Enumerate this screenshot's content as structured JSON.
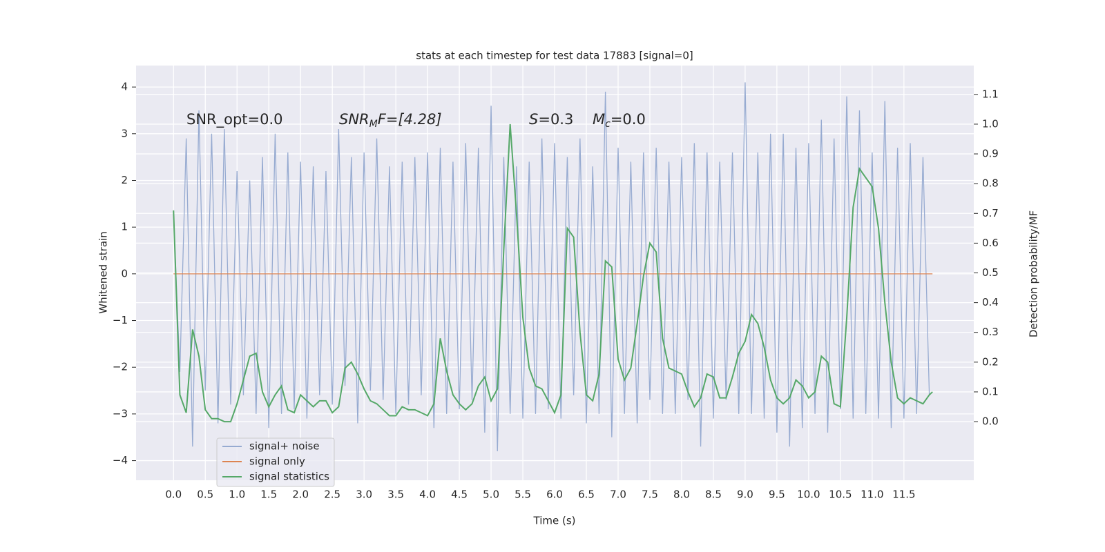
{
  "chart_data": {
    "type": "line",
    "title": "stats at each timestep for test data 17883 [signal=0]",
    "x_label": "Time (s)",
    "y_label": "Whitened strain",
    "y2_label": "Detection probability/MF",
    "annotations": [
      [
        "SNR_opt=0.0"
      ],
      [
        "SNR",
        "M",
        "F=[4.28]"
      ],
      [
        "S",
        "=0.3"
      ],
      [
        "M",
        "c",
        "=0.0"
      ]
    ],
    "xlim": [
      -0.59,
      12.6
    ],
    "ylim": [
      -4.42,
      4.46
    ],
    "y2lim": [
      -0.197,
      1.197
    ],
    "xticks": [
      {
        "value": 0,
        "label": "0.0"
      },
      {
        "value": 0.5,
        "label": "0.5"
      },
      {
        "value": 1,
        "label": "1.0"
      },
      {
        "value": 1.5,
        "label": "1.5"
      },
      {
        "value": 2,
        "label": "2.0"
      },
      {
        "value": 2.5,
        "label": "2.5"
      },
      {
        "value": 3,
        "label": "3.0"
      },
      {
        "value": 3.5,
        "label": "3.5"
      },
      {
        "value": 4,
        "label": "4.0"
      },
      {
        "value": 4.5,
        "label": "4.5"
      },
      {
        "value": 5,
        "label": "5.0"
      },
      {
        "value": 5.5,
        "label": "5.5"
      },
      {
        "value": 6,
        "label": "6.0"
      },
      {
        "value": 6.5,
        "label": "6.5"
      },
      {
        "value": 7,
        "label": "7.0"
      },
      {
        "value": 7.5,
        "label": "7.5"
      },
      {
        "value": 8,
        "label": "8.0"
      },
      {
        "value": 8.5,
        "label": "8.5"
      },
      {
        "value": 9,
        "label": "9.0"
      },
      {
        "value": 9.5,
        "label": "9.5"
      },
      {
        "value": 10,
        "label": "10.0"
      },
      {
        "value": 10.5,
        "label": "10.5"
      },
      {
        "value": 11,
        "label": "11.0"
      },
      {
        "value": 11.5,
        "label": "11.5"
      }
    ],
    "yticks": [
      {
        "value": -4,
        "label": "−4"
      },
      {
        "value": -3,
        "label": "−3"
      },
      {
        "value": -2,
        "label": "−2"
      },
      {
        "value": -1,
        "label": "−1"
      },
      0,
      1,
      2,
      3,
      4
    ],
    "y2ticks": [
      {
        "value": 0,
        "label": "0.0"
      },
      {
        "value": 0.1,
        "label": "0.1"
      },
      {
        "value": 0.2,
        "label": "0.2"
      },
      {
        "value": 0.3,
        "label": "0.3"
      },
      {
        "value": 0.4,
        "label": "0.4"
      },
      {
        "value": 0.5,
        "label": "0.5"
      },
      {
        "value": 0.6,
        "label": "0.6"
      },
      {
        "value": 0.7,
        "label": "0.7"
      },
      {
        "value": 0.8,
        "label": "0.8"
      },
      {
        "value": 0.9,
        "label": "0.9"
      },
      {
        "value": 1,
        "label": "1.0"
      },
      {
        "value": 1.1,
        "label": "1.1"
      }
    ],
    "grid": true,
    "legend": "lower left",
    "series": [
      {
        "name": "signal+ noise",
        "color": "#97abd1",
        "x": [
          0,
          0.1,
          0.2,
          0.3,
          0.4,
          0.5,
          0.6,
          0.7,
          0.8,
          0.9,
          1,
          1.1,
          1.2,
          1.3,
          1.4,
          1.5,
          1.6,
          1.7,
          1.8,
          1.9,
          2,
          2.1,
          2.2,
          2.3,
          2.4,
          2.5,
          2.6,
          2.7,
          2.8,
          2.9,
          3,
          3.1,
          3.2,
          3.3,
          3.4,
          3.5,
          3.6,
          3.7,
          3.8,
          3.9,
          4,
          4.1,
          4.2,
          4.3,
          4.4,
          4.5,
          4.6,
          4.7,
          4.8,
          4.9,
          5,
          5.1,
          5.2,
          5.3,
          5.4,
          5.5,
          5.6,
          5.7,
          5.8,
          5.9,
          6,
          6.1,
          6.2,
          6.3,
          6.4,
          6.5,
          6.6,
          6.7,
          6.8,
          6.9,
          7,
          7.1,
          7.2,
          7.3,
          7.4,
          7.5,
          7.6,
          7.7,
          7.8,
          7.9,
          8,
          8.1,
          8.2,
          8.3,
          8.4,
          8.5,
          8.6,
          8.7,
          8.8,
          8.9,
          9,
          9.1,
          9.2,
          9.3,
          9.4,
          9.5,
          9.6,
          9.7,
          9.8,
          9.9,
          10,
          10.1,
          10.2,
          10.3,
          10.4,
          10.5,
          10.6,
          10.7,
          10.8,
          10.9,
          11,
          11.1,
          11.2,
          11.3,
          11.4,
          11.5,
          11.6,
          11.7,
          11.8,
          11.9
        ],
        "values": [
          1.3,
          -2.1,
          2.9,
          -3.7,
          3.5,
          -2.5,
          3.0,
          -3.2,
          3.1,
          -2.8,
          2.2,
          -2.6,
          2.0,
          -3.0,
          2.5,
          -3.3,
          3.0,
          -3.0,
          2.6,
          -2.9,
          2.4,
          -3.1,
          2.3,
          -2.6,
          2.2,
          -2.8,
          3.1,
          -2.4,
          2.5,
          -3.2,
          2.6,
          -2.5,
          2.9,
          -2.7,
          2.3,
          -3.0,
          2.4,
          -2.8,
          2.5,
          -2.6,
          2.6,
          -3.3,
          2.7,
          -3.0,
          2.4,
          -2.9,
          2.8,
          -2.7,
          2.7,
          -3.4,
          3.6,
          -3.8,
          2.5,
          -3.0,
          2.3,
          -3.1,
          2.4,
          -3.0,
          2.9,
          -2.9,
          2.8,
          -3.1,
          2.5,
          -2.6,
          2.9,
          -3.2,
          2.3,
          -3.0,
          3.9,
          -3.5,
          2.7,
          -3.0,
          2.4,
          -3.2,
          2.6,
          -2.7,
          2.7,
          -3.0,
          2.4,
          -3.0,
          2.5,
          -2.7,
          2.8,
          -3.7,
          2.6,
          -3.1,
          2.4,
          -2.7,
          2.6,
          -3.0,
          4.1,
          -3.0,
          2.6,
          -3.1,
          3.0,
          -3.4,
          3.0,
          -3.7,
          2.7,
          -3.3,
          2.8,
          -3.0,
          3.3,
          -3.4,
          2.9,
          -2.9,
          3.8,
          -3.1,
          3.5,
          -3.0,
          2.6,
          -3.1,
          3.7,
          -3.3,
          2.7,
          -3.1,
          2.8,
          -3.0,
          2.5,
          -2.6
        ]
      },
      {
        "name": "signal only",
        "color": "#dd8452",
        "x": [
          0,
          11.95
        ],
        "values": [
          0,
          0
        ]
      },
      {
        "name": "signal statistics",
        "color": "#55a868",
        "axis": "y2",
        "x": [
          0,
          0.1,
          0.2,
          0.3,
          0.4,
          0.5,
          0.6,
          0.7,
          0.8,
          0.9,
          1,
          1.1,
          1.2,
          1.3,
          1.4,
          1.5,
          1.6,
          1.7,
          1.8,
          1.9,
          2,
          2.1,
          2.2,
          2.3,
          2.4,
          2.5,
          2.6,
          2.7,
          2.8,
          2.9,
          3,
          3.1,
          3.2,
          3.3,
          3.4,
          3.5,
          3.6,
          3.7,
          3.8,
          3.9,
          4,
          4.1,
          4.2,
          4.3,
          4.4,
          4.5,
          4.6,
          4.7,
          4.8,
          4.9,
          5,
          5.1,
          5.2,
          5.3,
          5.4,
          5.5,
          5.6,
          5.7,
          5.8,
          5.9,
          6,
          6.1,
          6.2,
          6.3,
          6.4,
          6.5,
          6.6,
          6.7,
          6.8,
          6.9,
          7,
          7.1,
          7.2,
          7.3,
          7.4,
          7.5,
          7.6,
          7.7,
          7.8,
          7.9,
          8,
          8.1,
          8.2,
          8.3,
          8.4,
          8.5,
          8.6,
          8.7,
          8.8,
          8.9,
          9,
          9.1,
          9.2,
          9.3,
          9.4,
          9.5,
          9.6,
          9.7,
          9.8,
          9.9,
          10,
          10.1,
          10.2,
          10.3,
          10.4,
          10.5,
          10.6,
          10.7,
          10.8,
          10.9,
          11,
          11.1,
          11.2,
          11.3,
          11.4,
          11.5,
          11.6,
          11.7,
          11.8,
          11.9,
          11.95
        ],
        "values": [
          0.71,
          0.09,
          0.03,
          0.31,
          0.22,
          0.04,
          0.01,
          0.01,
          0.0,
          0.0,
          0.06,
          0.14,
          0.22,
          0.23,
          0.1,
          0.05,
          0.09,
          0.12,
          0.04,
          0.03,
          0.09,
          0.07,
          0.05,
          0.07,
          0.07,
          0.03,
          0.05,
          0.18,
          0.2,
          0.16,
          0.11,
          0.07,
          0.06,
          0.04,
          0.02,
          0.02,
          0.05,
          0.04,
          0.04,
          0.03,
          0.02,
          0.06,
          0.28,
          0.17,
          0.09,
          0.06,
          0.04,
          0.06,
          0.12,
          0.15,
          0.07,
          0.11,
          0.58,
          1.0,
          0.7,
          0.35,
          0.18,
          0.12,
          0.11,
          0.07,
          0.03,
          0.09,
          0.65,
          0.62,
          0.3,
          0.09,
          0.07,
          0.16,
          0.54,
          0.52,
          0.21,
          0.14,
          0.18,
          0.33,
          0.49,
          0.6,
          0.57,
          0.28,
          0.18,
          0.17,
          0.16,
          0.1,
          0.05,
          0.08,
          0.16,
          0.15,
          0.08,
          0.08,
          0.15,
          0.23,
          0.27,
          0.36,
          0.33,
          0.25,
          0.14,
          0.08,
          0.06,
          0.08,
          0.14,
          0.12,
          0.08,
          0.1,
          0.22,
          0.2,
          0.06,
          0.05,
          0.35,
          0.72,
          0.85,
          0.82,
          0.79,
          0.65,
          0.4,
          0.2,
          0.08,
          0.06,
          0.08,
          0.07,
          0.06,
          0.09,
          0.1
        ]
      }
    ]
  }
}
